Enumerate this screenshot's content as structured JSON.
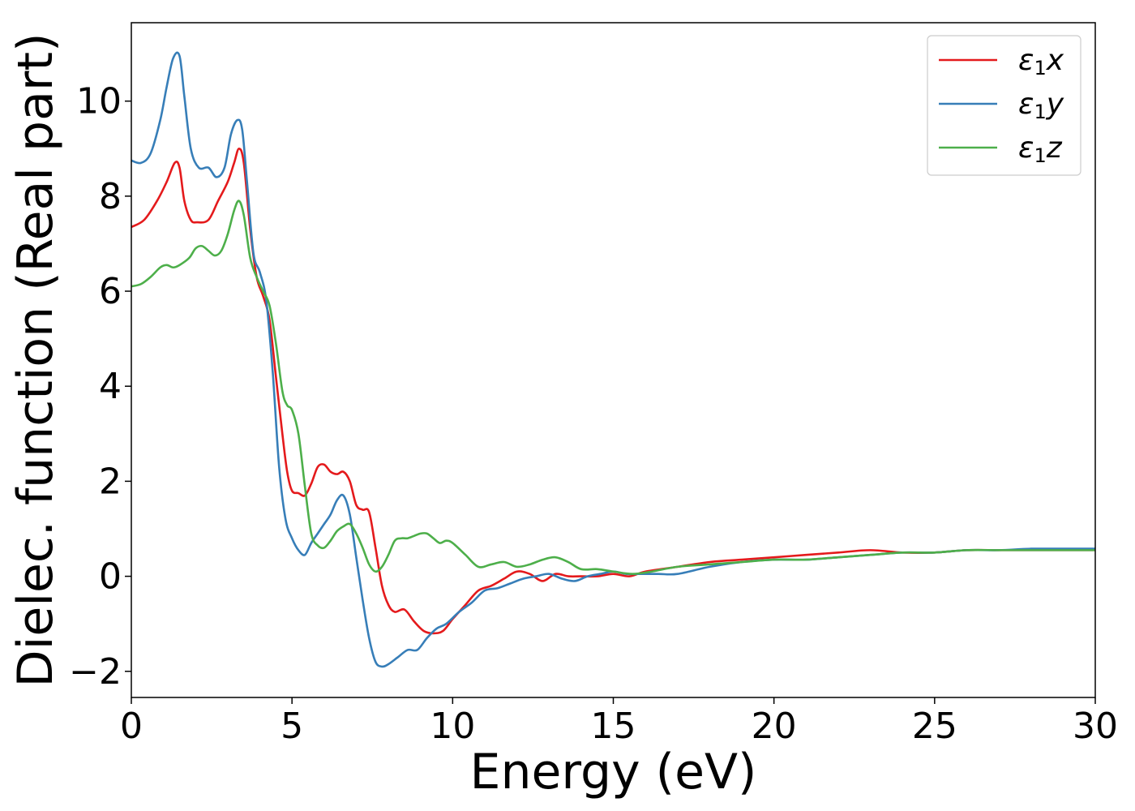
{
  "chart_data": {
    "type": "line",
    "xlabel": "Energy (eV)",
    "ylabel": "Dielec. function (Real part)",
    "xlim": [
      0,
      30
    ],
    "ylim": [
      -2.55,
      11.65
    ],
    "xticks": [
      0,
      5,
      10,
      15,
      20,
      25,
      30
    ],
    "xtick_labels": [
      "0",
      "5",
      "10",
      "15",
      "20",
      "25",
      "30"
    ],
    "yticks": [
      -2,
      0,
      2,
      4,
      6,
      8,
      10
    ],
    "ytick_labels": [
      "−2",
      "0",
      "2",
      "4",
      "6",
      "8",
      "10"
    ],
    "grid": false,
    "legend_position": "top-right",
    "series": [
      {
        "name_base": "ε",
        "name_sub": "1",
        "name_var": "x",
        "color": "#e41a1c",
        "x": [
          0,
          0.4,
          0.8,
          1.1,
          1.35,
          1.5,
          1.65,
          1.85,
          2.05,
          2.4,
          2.7,
          3.0,
          3.2,
          3.35,
          3.5,
          3.7,
          3.9,
          4.1,
          4.3,
          4.5,
          4.7,
          4.85,
          5.0,
          5.2,
          5.4,
          5.6,
          5.8,
          6.0,
          6.2,
          6.4,
          6.6,
          6.8,
          7.0,
          7.2,
          7.4,
          7.6,
          7.8,
          8.0,
          8.2,
          8.5,
          8.8,
          9.1,
          9.4,
          9.7,
          10.0,
          10.4,
          10.8,
          11.2,
          11.6,
          12.0,
          12.4,
          12.8,
          13.2,
          13.6,
          14.0,
          14.5,
          15.0,
          15.5,
          16.0,
          17.0,
          18.0,
          19.0,
          20.0,
          21.0,
          22.0,
          23.0,
          24.0,
          25.0,
          26.0,
          27.0,
          28.0,
          29.0,
          30.0
        ],
        "y": [
          7.35,
          7.5,
          7.9,
          8.3,
          8.7,
          8.6,
          7.9,
          7.5,
          7.45,
          7.5,
          7.9,
          8.3,
          8.7,
          9.0,
          8.7,
          7.3,
          6.3,
          5.9,
          5.4,
          4.2,
          3.0,
          2.2,
          1.8,
          1.75,
          1.7,
          1.95,
          2.3,
          2.35,
          2.2,
          2.15,
          2.2,
          2.0,
          1.5,
          1.4,
          1.35,
          0.6,
          -0.2,
          -0.6,
          -0.75,
          -0.7,
          -0.95,
          -1.15,
          -1.2,
          -1.15,
          -0.9,
          -0.6,
          -0.3,
          -0.2,
          -0.05,
          0.1,
          0.05,
          -0.1,
          0.05,
          0.0,
          0.0,
          0.0,
          0.05,
          0.0,
          0.1,
          0.2,
          0.3,
          0.35,
          0.4,
          0.45,
          0.5,
          0.55,
          0.5,
          0.5,
          0.55,
          0.55,
          0.55,
          0.55,
          0.55
        ]
      },
      {
        "name_base": "ε",
        "name_sub": "1",
        "name_var": "y",
        "color": "#377eb8",
        "x": [
          0,
          0.3,
          0.6,
          0.9,
          1.1,
          1.3,
          1.5,
          1.65,
          1.85,
          2.1,
          2.4,
          2.65,
          2.9,
          3.1,
          3.3,
          3.45,
          3.6,
          3.8,
          4.0,
          4.2,
          4.4,
          4.6,
          4.8,
          5.0,
          5.2,
          5.4,
          5.6,
          5.8,
          6.0,
          6.2,
          6.4,
          6.6,
          6.8,
          7.0,
          7.2,
          7.4,
          7.6,
          7.8,
          8.0,
          8.3,
          8.6,
          8.9,
          9.2,
          9.5,
          9.8,
          10.2,
          10.6,
          11.0,
          11.4,
          11.8,
          12.2,
          12.6,
          13.0,
          13.4,
          13.8,
          14.2,
          14.6,
          15.0,
          15.4,
          15.8,
          16.4,
          17.0,
          18.0,
          19.0,
          20.0,
          21.0,
          22.0,
          23.0,
          24.0,
          25.0,
          26.0,
          27.0,
          28.0,
          29.0,
          30.0
        ],
        "y": [
          8.75,
          8.7,
          8.9,
          9.6,
          10.3,
          10.9,
          10.95,
          10.1,
          9.0,
          8.6,
          8.6,
          8.4,
          8.6,
          9.3,
          9.6,
          9.4,
          8.3,
          6.8,
          6.4,
          5.8,
          4.3,
          2.3,
          1.2,
          0.8,
          0.55,
          0.45,
          0.7,
          0.9,
          1.1,
          1.3,
          1.6,
          1.7,
          1.3,
          0.4,
          -0.5,
          -1.3,
          -1.8,
          -1.9,
          -1.85,
          -1.7,
          -1.55,
          -1.55,
          -1.3,
          -1.1,
          -1.0,
          -0.75,
          -0.55,
          -0.3,
          -0.25,
          -0.15,
          -0.05,
          0.0,
          0.05,
          -0.05,
          -0.1,
          0.0,
          0.05,
          0.1,
          0.05,
          0.05,
          0.05,
          0.05,
          0.2,
          0.3,
          0.35,
          0.35,
          0.4,
          0.45,
          0.5,
          0.5,
          0.55,
          0.55,
          0.58,
          0.58,
          0.58
        ]
      },
      {
        "name_base": "ε",
        "name_sub": "1",
        "name_var": "z",
        "color": "#4daf4a",
        "x": [
          0,
          0.3,
          0.6,
          0.9,
          1.1,
          1.3,
          1.5,
          1.8,
          2.0,
          2.2,
          2.4,
          2.6,
          2.8,
          3.0,
          3.2,
          3.35,
          3.5,
          3.7,
          3.9,
          4.1,
          4.3,
          4.5,
          4.7,
          4.85,
          5.0,
          5.2,
          5.4,
          5.6,
          5.8,
          6.0,
          6.2,
          6.4,
          6.6,
          6.8,
          7.0,
          7.2,
          7.4,
          7.6,
          7.8,
          8.0,
          8.2,
          8.4,
          8.6,
          8.8,
          9.0,
          9.2,
          9.4,
          9.6,
          9.8,
          10.0,
          10.4,
          10.8,
          11.2,
          11.6,
          12.0,
          12.4,
          12.8,
          13.2,
          13.6,
          14.0,
          14.5,
          15.0,
          15.6,
          16.2,
          17.0,
          18.0,
          19.0,
          20.0,
          21.0,
          22.0,
          23.0,
          24.0,
          25.0,
          26.0,
          27.0,
          28.0,
          29.0,
          30.0
        ],
        "y": [
          6.1,
          6.15,
          6.3,
          6.5,
          6.55,
          6.5,
          6.55,
          6.7,
          6.9,
          6.95,
          6.85,
          6.75,
          6.85,
          7.2,
          7.7,
          7.9,
          7.6,
          6.7,
          6.3,
          6.0,
          5.7,
          4.9,
          3.9,
          3.6,
          3.5,
          3.0,
          1.9,
          0.9,
          0.65,
          0.6,
          0.75,
          0.95,
          1.05,
          1.1,
          0.9,
          0.6,
          0.25,
          0.1,
          0.2,
          0.45,
          0.75,
          0.8,
          0.8,
          0.85,
          0.9,
          0.9,
          0.8,
          0.7,
          0.75,
          0.7,
          0.45,
          0.2,
          0.25,
          0.3,
          0.2,
          0.25,
          0.35,
          0.4,
          0.3,
          0.15,
          0.15,
          0.1,
          0.05,
          0.1,
          0.2,
          0.25,
          0.3,
          0.35,
          0.35,
          0.4,
          0.45,
          0.5,
          0.5,
          0.55,
          0.55,
          0.55,
          0.55,
          0.55
        ]
      }
    ]
  }
}
